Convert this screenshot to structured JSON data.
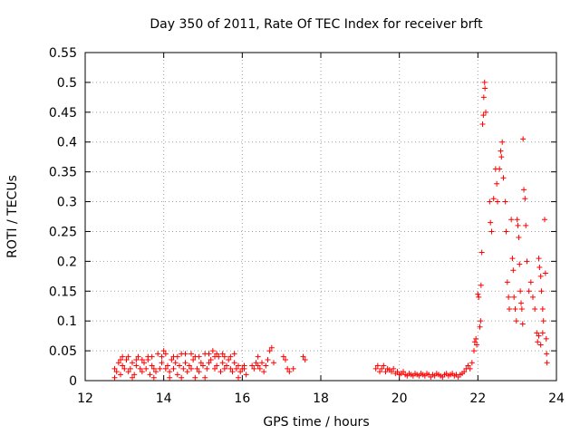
{
  "chart_data": {
    "type": "scatter",
    "title": "Day 350 of 2011, Rate Of TEC Index for receiver brft",
    "xlabel": "GPS time / hours",
    "ylabel": "ROTI / TECUs",
    "xlim": [
      12,
      24
    ],
    "ylim": [
      0,
      0.55
    ],
    "x_ticks": [
      12,
      14,
      16,
      18,
      20,
      22,
      24
    ],
    "y_ticks": [
      0,
      0.05,
      0.1,
      0.15,
      0.2,
      0.25,
      0.3,
      0.35,
      0.4,
      0.45,
      0.5,
      0.55
    ],
    "x_tick_labels": [
      "12",
      "14",
      "16",
      "18",
      "20",
      "22",
      "24"
    ],
    "y_tick_labels": [
      "0",
      "0.05",
      "0.1",
      "0.15",
      "0.2",
      "0.25",
      "0.3",
      "0.35",
      "0.4",
      "0.45",
      "0.5",
      "0.55"
    ],
    "grid": true,
    "marker": "+",
    "color": "#ff0000",
    "series": [
      {
        "name": "ROTI",
        "points": [
          [
            12.75,
            0.02
          ],
          [
            12.8,
            0.015
          ],
          [
            12.85,
            0.03
          ],
          [
            12.9,
            0.01
          ],
          [
            12.95,
            0.025
          ],
          [
            13.0,
            0.02
          ],
          [
            13.05,
            0.035
          ],
          [
            13.1,
            0.015
          ],
          [
            13.15,
            0.02
          ],
          [
            13.2,
            0.03
          ],
          [
            13.25,
            0.01
          ],
          [
            13.3,
            0.025
          ],
          [
            13.35,
            0.04
          ],
          [
            13.4,
            0.02
          ],
          [
            13.45,
            0.015
          ],
          [
            13.5,
            0.03
          ],
          [
            13.55,
            0.02
          ],
          [
            13.6,
            0.035
          ],
          [
            13.65,
            0.01
          ],
          [
            13.7,
            0.025
          ],
          [
            13.75,
            0.02
          ],
          [
            13.8,
            0.015
          ],
          [
            13.85,
            0.045
          ],
          [
            13.9,
            0.02
          ],
          [
            13.95,
            0.03
          ],
          [
            14.0,
            0.05
          ],
          [
            14.05,
            0.02
          ],
          [
            14.1,
            0.025
          ],
          [
            14.15,
            0.015
          ],
          [
            14.2,
            0.035
          ],
          [
            14.25,
            0.02
          ],
          [
            14.3,
            0.03
          ],
          [
            14.35,
            0.01
          ],
          [
            14.4,
            0.025
          ],
          [
            14.45,
            0.045
          ],
          [
            14.5,
            0.02
          ],
          [
            14.55,
            0.03
          ],
          [
            14.6,
            0.015
          ],
          [
            14.65,
            0.025
          ],
          [
            14.7,
            0.02
          ],
          [
            14.75,
            0.035
          ],
          [
            14.8,
            0.04
          ],
          [
            14.85,
            0.02
          ],
          [
            14.9,
            0.015
          ],
          [
            14.95,
            0.03
          ],
          [
            15.0,
            0.025
          ],
          [
            15.05,
            0.045
          ],
          [
            15.1,
            0.02
          ],
          [
            15.15,
            0.03
          ],
          [
            15.2,
            0.035
          ],
          [
            15.25,
            0.05
          ],
          [
            15.3,
            0.02
          ],
          [
            15.35,
            0.025
          ],
          [
            15.4,
            0.04
          ],
          [
            15.45,
            0.015
          ],
          [
            15.5,
            0.03
          ],
          [
            15.55,
            0.02
          ],
          [
            15.6,
            0.025
          ],
          [
            15.65,
            0.035
          ],
          [
            15.7,
            0.02
          ],
          [
            15.75,
            0.015
          ],
          [
            15.8,
            0.03
          ],
          [
            15.85,
            0.02
          ],
          [
            15.9,
            0.025
          ],
          [
            15.95,
            0.015
          ],
          [
            16.0,
            0.02
          ],
          [
            16.05,
            0.025
          ],
          [
            16.1,
            0.01
          ],
          [
            16.3,
            0.02
          ],
          [
            16.35,
            0.03
          ],
          [
            16.4,
            0.025
          ],
          [
            16.45,
            0.02
          ],
          [
            16.5,
            0.03
          ],
          [
            16.55,
            0.015
          ],
          [
            16.6,
            0.025
          ],
          [
            16.65,
            0.035
          ],
          [
            16.7,
            0.05
          ],
          [
            16.75,
            0.055
          ],
          [
            16.8,
            0.03
          ],
          [
            17.05,
            0.04
          ],
          [
            17.1,
            0.035
          ],
          [
            17.15,
            0.02
          ],
          [
            17.2,
            0.015
          ],
          [
            17.3,
            0.02
          ],
          [
            17.55,
            0.04
          ],
          [
            17.6,
            0.035
          ],
          [
            12.9,
            0.035
          ],
          [
            13.1,
            0.04
          ],
          [
            13.3,
            0.035
          ],
          [
            13.6,
            0.04
          ],
          [
            13.75,
            0.005
          ],
          [
            14.05,
            0.045
          ],
          [
            14.25,
            0.04
          ],
          [
            14.45,
            0.005
          ],
          [
            14.7,
            0.045
          ],
          [
            14.9,
            0.04
          ],
          [
            15.15,
            0.045
          ],
          [
            15.35,
            0.045
          ],
          [
            15.55,
            0.04
          ],
          [
            15.8,
            0.045
          ],
          [
            16.05,
            0.02
          ],
          [
            16.4,
            0.04
          ],
          [
            12.75,
            0.005
          ],
          [
            12.95,
            0.04
          ],
          [
            13.2,
            0.005
          ],
          [
            13.45,
            0.035
          ],
          [
            13.7,
            0.04
          ],
          [
            13.95,
            0.04
          ],
          [
            14.15,
            0.005
          ],
          [
            14.35,
            0.04
          ],
          [
            14.55,
            0.045
          ],
          [
            14.8,
            0.005
          ],
          [
            15.05,
            0.005
          ],
          [
            15.3,
            0.04
          ],
          [
            15.5,
            0.045
          ],
          [
            15.7,
            0.04
          ],
          [
            15.9,
            0.005
          ],
          [
            16.25,
            0.025
          ],
          [
            19.4,
            0.02
          ],
          [
            19.45,
            0.025
          ],
          [
            19.5,
            0.015
          ],
          [
            19.55,
            0.02
          ],
          [
            19.6,
            0.025
          ],
          [
            19.65,
            0.015
          ],
          [
            19.7,
            0.02
          ],
          [
            19.75,
            0.018
          ],
          [
            19.8,
            0.015
          ],
          [
            19.85,
            0.02
          ],
          [
            19.9,
            0.012
          ],
          [
            19.95,
            0.015
          ],
          [
            20.0,
            0.01
          ],
          [
            20.05,
            0.012
          ],
          [
            20.1,
            0.015
          ],
          [
            20.15,
            0.01
          ],
          [
            20.2,
            0.008
          ],
          [
            20.25,
            0.012
          ],
          [
            20.3,
            0.01
          ],
          [
            20.35,
            0.008
          ],
          [
            20.4,
            0.012
          ],
          [
            20.45,
            0.01
          ],
          [
            20.5,
            0.008
          ],
          [
            20.55,
            0.012
          ],
          [
            20.6,
            0.01
          ],
          [
            20.65,
            0.008
          ],
          [
            20.7,
            0.012
          ],
          [
            20.75,
            0.01
          ],
          [
            20.8,
            0.006
          ],
          [
            20.85,
            0.01
          ],
          [
            20.9,
            0.008
          ],
          [
            20.95,
            0.012
          ],
          [
            21.0,
            0.01
          ],
          [
            21.05,
            0.008
          ],
          [
            21.1,
            0.006
          ],
          [
            21.15,
            0.01
          ],
          [
            21.2,
            0.012
          ],
          [
            21.25,
            0.008
          ],
          [
            21.3,
            0.01
          ],
          [
            21.35,
            0.012
          ],
          [
            21.4,
            0.008
          ],
          [
            21.45,
            0.01
          ],
          [
            21.5,
            0.006
          ],
          [
            21.55,
            0.01
          ],
          [
            21.6,
            0.012
          ],
          [
            21.65,
            0.015
          ],
          [
            21.7,
            0.02
          ],
          [
            21.75,
            0.025
          ],
          [
            21.8,
            0.02
          ],
          [
            21.85,
            0.03
          ],
          [
            21.9,
            0.05
          ],
          [
            21.92,
            0.065
          ],
          [
            21.95,
            0.07
          ],
          [
            21.97,
            0.06
          ],
          [
            22.0,
            0.145
          ],
          [
            22.02,
            0.14
          ],
          [
            22.05,
            0.09
          ],
          [
            22.07,
            0.1
          ],
          [
            22.08,
            0.16
          ],
          [
            22.1,
            0.215
          ],
          [
            22.12,
            0.43
          ],
          [
            22.14,
            0.445
          ],
          [
            22.15,
            0.475
          ],
          [
            22.17,
            0.5
          ],
          [
            22.18,
            0.49
          ],
          [
            22.2,
            0.45
          ],
          [
            22.3,
            0.3
          ],
          [
            22.32,
            0.265
          ],
          [
            22.35,
            0.25
          ],
          [
            22.4,
            0.305
          ],
          [
            22.45,
            0.355
          ],
          [
            22.48,
            0.33
          ],
          [
            22.5,
            0.3
          ],
          [
            22.55,
            0.355
          ],
          [
            22.58,
            0.385
          ],
          [
            22.6,
            0.375
          ],
          [
            22.62,
            0.4
          ],
          [
            22.65,
            0.34
          ],
          [
            22.7,
            0.3
          ],
          [
            22.72,
            0.25
          ],
          [
            22.75,
            0.165
          ],
          [
            22.78,
            0.14
          ],
          [
            22.8,
            0.12
          ],
          [
            22.85,
            0.27
          ],
          [
            22.88,
            0.205
          ],
          [
            22.9,
            0.185
          ],
          [
            22.92,
            0.14
          ],
          [
            22.95,
            0.12
          ],
          [
            22.98,
            0.1
          ],
          [
            23.0,
            0.27
          ],
          [
            23.02,
            0.26
          ],
          [
            23.04,
            0.24
          ],
          [
            23.06,
            0.195
          ],
          [
            23.08,
            0.15
          ],
          [
            23.1,
            0.13
          ],
          [
            23.12,
            0.12
          ],
          [
            23.14,
            0.095
          ],
          [
            23.15,
            0.405
          ],
          [
            23.17,
            0.32
          ],
          [
            23.2,
            0.305
          ],
          [
            23.22,
            0.26
          ],
          [
            23.25,
            0.2
          ],
          [
            23.3,
            0.15
          ],
          [
            23.35,
            0.165
          ],
          [
            23.4,
            0.14
          ],
          [
            23.45,
            0.12
          ],
          [
            23.5,
            0.08
          ],
          [
            23.52,
            0.065
          ],
          [
            23.55,
            0.205
          ],
          [
            23.57,
            0.19
          ],
          [
            23.6,
            0.175
          ],
          [
            23.62,
            0.15
          ],
          [
            23.65,
            0.12
          ],
          [
            23.67,
            0.1
          ],
          [
            23.7,
            0.27
          ],
          [
            23.72,
            0.18
          ],
          [
            23.74,
            0.07
          ],
          [
            23.75,
            0.045
          ],
          [
            23.76,
            0.03
          ],
          [
            23.6,
            0.06
          ],
          [
            23.65,
            0.08
          ],
          [
            23.55,
            0.075
          ]
        ]
      }
    ]
  }
}
